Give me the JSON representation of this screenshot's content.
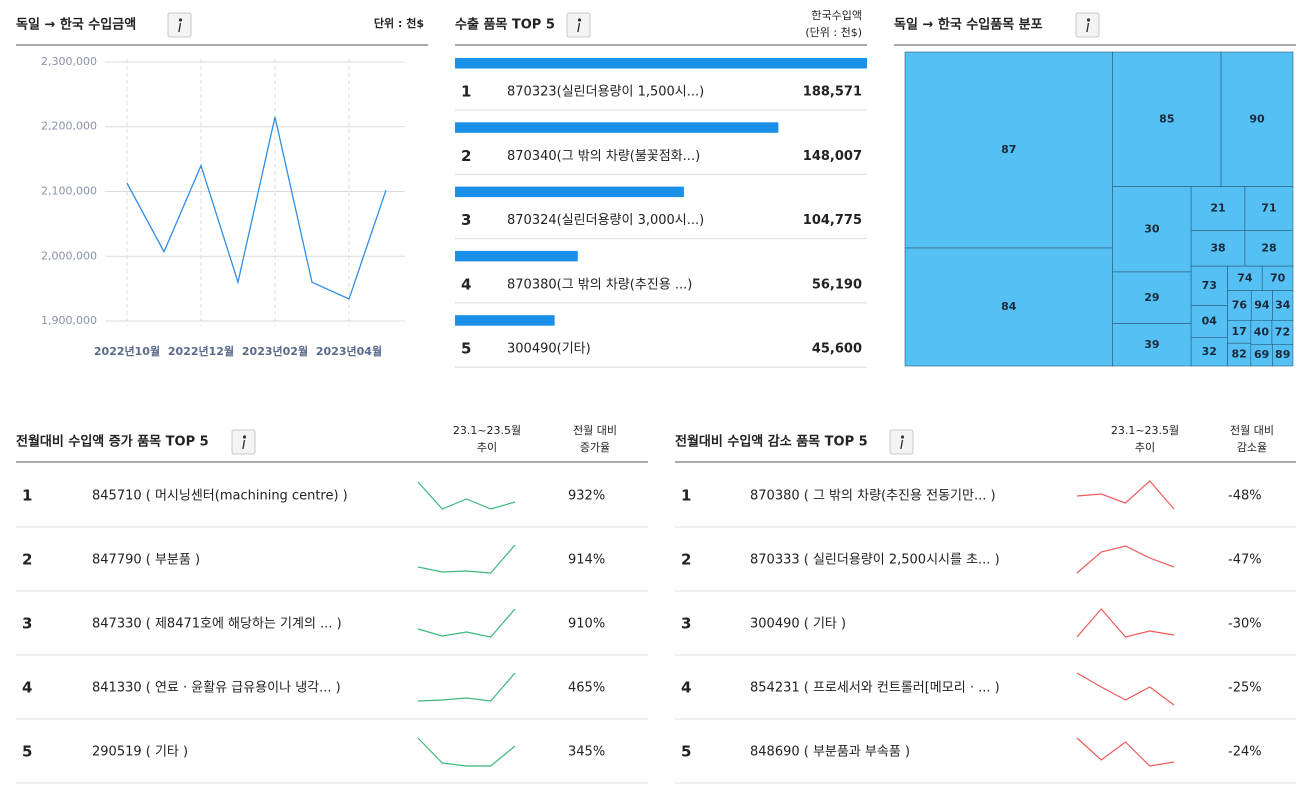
{
  "chart_data": [
    {
      "type": "line",
      "title": "독일 → 한국  수입금액",
      "unit_note": "단위 : 천$",
      "categories": [
        "2022년10월",
        null,
        "2022년12월",
        null,
        "2023년02월",
        null,
        "2023년04월",
        null
      ],
      "values": [
        2113000,
        2007000,
        2140000,
        1960000,
        2215000,
        1960000,
        1934000,
        2102000
      ],
      "color": "#2f8ee6",
      "ylim": [
        1880000,
        2320000
      ],
      "yticks": [
        {
          "value": 1900000,
          "label": "1,900,000"
        },
        {
          "value": 2000000,
          "label": "2,000,000"
        },
        {
          "value": 2100000,
          "label": "2,100,000"
        },
        {
          "value": 2200000,
          "label": "2,200,000"
        },
        {
          "value": 2300000,
          "label": "2,300,000"
        }
      ],
      "grid": true
    },
    {
      "type": "bar",
      "title": "수출 품목 TOP 5",
      "value_header": [
        "한국수입액",
        "(단위 : 천$)"
      ],
      "ranks": [
        "1",
        "2",
        "3",
        "4",
        "5"
      ],
      "categories": [
        "870323(실린더용량이 1,500시...)",
        "870340(그 밖의 차량(불꽃점화...)",
        "870324(실린더용량이 3,000시...)",
        "870380(그 밖의 차량(추진용 ...)",
        "300490(기타)"
      ],
      "values": [
        188571,
        148007,
        104775,
        56190,
        45600
      ],
      "value_labels": [
        "188,571",
        "148,007",
        "104,775",
        "56,190",
        "45,600"
      ],
      "color": "#1a90e8",
      "xlim": [
        0,
        188571
      ]
    },
    {
      "type": "treemap",
      "title": "독일 → 한국  수입품목 분포",
      "categories": [
        "87",
        "84",
        "85",
        "90",
        "30",
        "29",
        "39",
        "21",
        "71",
        "38",
        "28",
        "73",
        "04",
        "32",
        "74",
        "70",
        "76",
        "94",
        "34",
        "17",
        "82",
        "40",
        "72",
        "69",
        "89"
      ],
      "values": [
        40180,
        24190,
        14410,
        9563,
        6612,
        4002,
        3285,
        2340,
        2091,
        1886,
        1681,
        1421,
        1152,
        1015,
        840,
        744,
        696,
        624,
        600,
        528,
        525,
        500,
        500,
        462,
        440
      ],
      "color": "#55c0f3"
    },
    {
      "type": "sparkline_table",
      "title": "전월대비 수입액 증가 품목 TOP 5",
      "headers": {
        "trend": [
          "23.1~23.5월",
          "추이"
        ],
        "change": [
          "전월 대비",
          "증가율"
        ]
      },
      "color": "#3cb878",
      "ylim": [
        0,
        100
      ],
      "rows": [
        {
          "rank": "1",
          "name": "845710 ( 머시닝센터(machining centre) )",
          "trend": [
            85,
            17.5,
            42.5,
            17.5,
            35
          ],
          "change": 932,
          "change_label": "932%"
        },
        {
          "rank": "2",
          "name": "847790 ( 부분품 )",
          "trend": [
            32.5,
            20,
            22.5,
            17.5,
            87.5
          ],
          "change": 914,
          "change_label": "914%"
        },
        {
          "rank": "3",
          "name": "847330 ( 제8471호에 해당하는 기계의 ... )",
          "trend": [
            37.5,
            20,
            30,
            17.5,
            87.5
          ],
          "change": 910,
          "change_label": "910%"
        },
        {
          "rank": "4",
          "name": "841330 ( 연료 · 윤활유 급유용이나 냉각... )",
          "trend": [
            17.5,
            20,
            25,
            17.5,
            87.5
          ],
          "change": 465,
          "change_label": "465%"
        },
        {
          "rank": "5",
          "name": "290519 ( 기타 )",
          "trend": [
            85,
            22.5,
            15,
            15,
            65
          ],
          "change": 345,
          "change_label": "345%"
        }
      ]
    },
    {
      "type": "sparkline_table",
      "title": "전월대비 수입액 감소 품목 TOP 5",
      "headers": {
        "trend": [
          "23.1~23.5월",
          "추이"
        ],
        "change": [
          "전월 대비",
          "감소율"
        ]
      },
      "color": "#ee5a5a",
      "ylim": [
        0,
        100
      ],
      "rows": [
        {
          "rank": "1",
          "name": "870380 ( 그 밖의 차량(추진용 전동기만... )",
          "trend": [
            50,
            55,
            32.5,
            87.5,
            17.5
          ],
          "change": -48,
          "change_label": "-48%"
        },
        {
          "rank": "2",
          "name": "870333 ( 실린더용량이 2,500시시를 초... )",
          "trend": [
            17.5,
            70,
            85,
            55,
            32.5
          ],
          "change": -47,
          "change_label": "-47%"
        },
        {
          "rank": "3",
          "name": "300490 ( 기타 )",
          "trend": [
            17.5,
            87.5,
            17.5,
            32.5,
            22.5
          ],
          "change": -30,
          "change_label": "-30%"
        },
        {
          "rank": "4",
          "name": "854231 ( 프로세서와 컨트롤러[메모리 · ... )",
          "trend": [
            87.5,
            52.5,
            20,
            52.5,
            7.5
          ],
          "change": -25,
          "change_label": "-25%"
        },
        {
          "rank": "5",
          "name": "848690 ( 부분품과 부속품 )",
          "trend": [
            85,
            30,
            75,
            15,
            25
          ],
          "change": -24,
          "change_label": "-24%"
        }
      ]
    }
  ]
}
